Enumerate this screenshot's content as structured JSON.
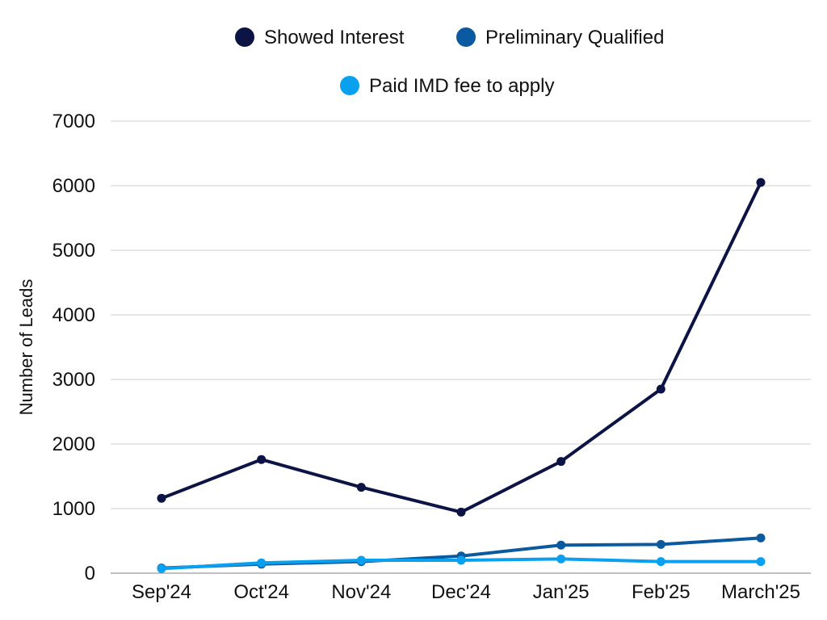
{
  "chart_data": {
    "type": "line",
    "title": "",
    "xlabel": "",
    "ylabel": "Number of Leads",
    "categories": [
      "Sep'24",
      "Oct'24",
      "Nov'24",
      "Dec'24",
      "Jan'25",
      "Feb'25",
      "March'25"
    ],
    "ylim": [
      0,
      7000
    ],
    "yticks": [
      0,
      1000,
      2000,
      3000,
      4000,
      5000,
      6000,
      7000
    ],
    "ytick_labels": [
      "0",
      "1000",
      "2000",
      "3000",
      "4000",
      "5000",
      "6000",
      "7000"
    ],
    "grid": true,
    "legend_position": "top-center",
    "series": [
      {
        "name": "Showed Interest",
        "color": "#0b1445",
        "values": [
          1160,
          1760,
          1330,
          945,
          1730,
          2850,
          6050
        ]
      },
      {
        "name": "Preliminary Qualified",
        "color": "#0b5aa0",
        "values": [
          80,
          140,
          180,
          265,
          435,
          445,
          545
        ]
      },
      {
        "name": "Paid IMD fee to apply",
        "color": "#0aa0f0",
        "values": [
          70,
          160,
          200,
          200,
          220,
          180,
          180
        ]
      }
    ]
  }
}
